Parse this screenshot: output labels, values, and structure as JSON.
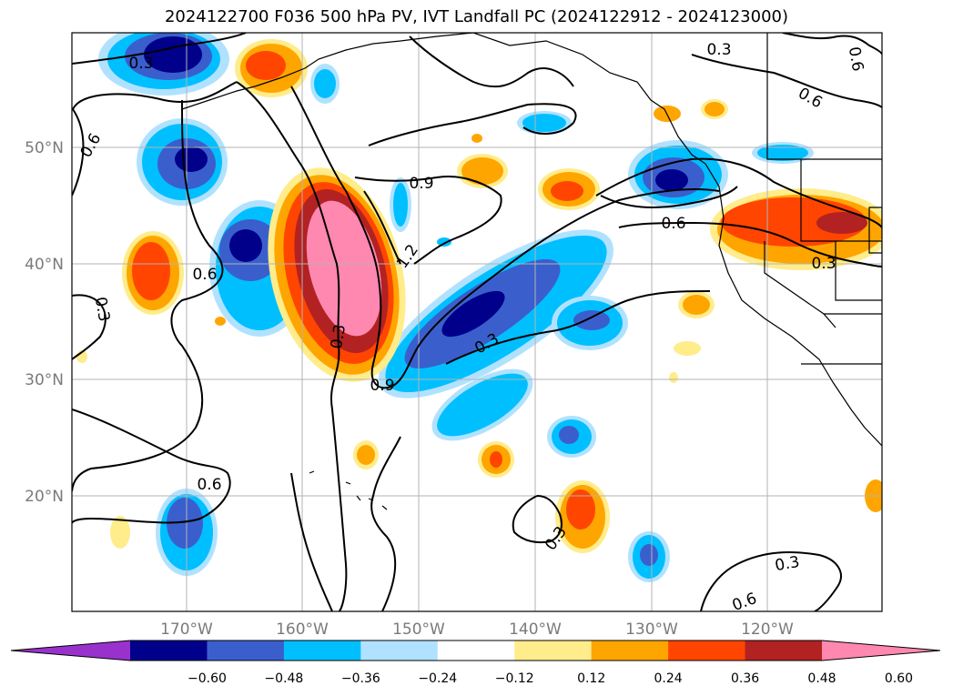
{
  "title": "2024122700 F036 500 hPa PV, IVT Landfall PC (2024122912 - 2024123000)",
  "lon_labels": [
    "170°W",
    "160°W",
    "150°W",
    "140°W",
    "130°W",
    "120°W"
  ],
  "lat_labels": [
    "50°N",
    "40°N",
    "30°N",
    "20°N"
  ],
  "contour_labels": [
    "0.3",
    "0.3",
    "0.6",
    "0.6",
    "0.6",
    "0.6",
    "0.9",
    "0.6",
    "1.2",
    "0.3",
    "0.3",
    "0.3",
    "0.9",
    "0.3",
    "0.6",
    "0.3",
    "0.6",
    "0.3"
  ],
  "colorbar": {
    "ticks": [
      "−0.60",
      "−0.48",
      "−0.36",
      "−0.24",
      "−0.12",
      "0.12",
      "0.24",
      "0.36",
      "0.48",
      "0.60"
    ],
    "colors": [
      "#9932cc",
      "#00008b",
      "#3a5fcd",
      "#00bfff",
      "#b0e2ff",
      "#ffffff",
      "#ffec8b",
      "#ffa500",
      "#ff4500",
      "#b22222",
      "#ff88b0"
    ]
  },
  "colors": {
    "dark_blue": "#00008b",
    "mid_blue": "#3a5fcd",
    "sky_blue": "#00bfff",
    "light_blue": "#b0e2ff",
    "light_yellow": "#ffec8b",
    "orange": "#ffa500",
    "red_orange": "#ff4500",
    "firebrick": "#b22222",
    "pink": "#ff88b0"
  }
}
